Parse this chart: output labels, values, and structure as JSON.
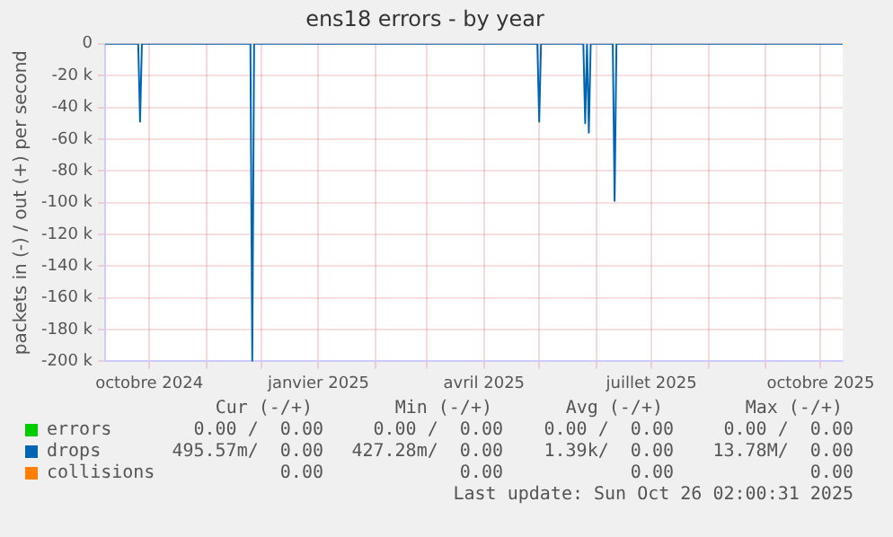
{
  "chart_data": {
    "type": "line",
    "title": "ens18 errors - by year",
    "ylabel": "packets in (-) / out (+) per second",
    "xlim": [
      "2024-09-07",
      "2025-10-13"
    ],
    "xticks": [
      {
        "value": "2024-10-01",
        "label": "octobre 2024"
      },
      {
        "value": "2024-11-01",
        "label": null
      },
      {
        "value": "2024-12-01",
        "label": null
      },
      {
        "value": "2025-01-01",
        "label": "janvier 2025"
      },
      {
        "value": "2025-02-01",
        "label": null
      },
      {
        "value": "2025-03-01",
        "label": null
      },
      {
        "value": "2025-04-01",
        "label": "avril 2025"
      },
      {
        "value": "2025-05-01",
        "label": null
      },
      {
        "value": "2025-06-01",
        "label": null
      },
      {
        "value": "2025-07-01",
        "label": "juillet 2025"
      },
      {
        "value": "2025-08-01",
        "label": null
      },
      {
        "value": "2025-09-01",
        "label": null
      },
      {
        "value": "2025-10-01",
        "label": "octobre 2025"
      }
    ],
    "ylim": [
      -200000,
      0
    ],
    "yticks": [
      {
        "value": -200000,
        "label": "-200 k"
      },
      {
        "value": -180000,
        "label": "-180 k"
      },
      {
        "value": -160000,
        "label": "-160 k"
      },
      {
        "value": -140000,
        "label": "-140 k"
      },
      {
        "value": -120000,
        "label": "-120 k"
      },
      {
        "value": -100000,
        "label": "-100 k"
      },
      {
        "value": -80000,
        "label": "-80 k"
      },
      {
        "value": -60000,
        "label": "-60 k"
      },
      {
        "value": -40000,
        "label": "-40 k"
      },
      {
        "value": -20000,
        "label": "-20 k"
      },
      0
    ],
    "grid": true,
    "legend": "bottom left",
    "marker": "none",
    "line_style": "solid",
    "series": [
      {
        "name": "errors",
        "color": "#00cc00"
      },
      {
        "name": "drops",
        "color": "#0066b3",
        "x": [
          "2024-09-07",
          "2024-09-25",
          "2024-09-26",
          "2024-09-27",
          "2024-11-25",
          "2024-11-26",
          "2024-11-27",
          "2025-04-30",
          "2025-05-01",
          "2025-05-02",
          "2025-05-25",
          "2025-05-26",
          "2025-05-27",
          "2025-05-28",
          "2025-05-29",
          "2025-06-10",
          "2025-06-11",
          "2025-06-12",
          "2025-10-13"
        ],
        "values": [
          0,
          0,
          -49000,
          0,
          0,
          -200000,
          0,
          0,
          -49000,
          0,
          0,
          -50000,
          0,
          -56000,
          0,
          0,
          -99000,
          0,
          0
        ]
      },
      {
        "name": "collisions",
        "color": "#ff8000"
      }
    ],
    "annotations": [
      "Cur (-/+)",
      "Min (-/+)",
      "Avg (-/+)",
      "Max (-/+)",
      "0.00 /  0.00",
      "0.00 /  0.00",
      "0.00 /  0.00",
      "0.00 /  0.00",
      "495.57m/  0.00",
      "427.28m/  0.00",
      "1.39k/  0.00",
      "13.78M/  0.00",
      "0.00",
      "0.00",
      "0.00",
      "0.00",
      "Last update: Sun Oct 26 02:00:31 2025"
    ]
  }
}
